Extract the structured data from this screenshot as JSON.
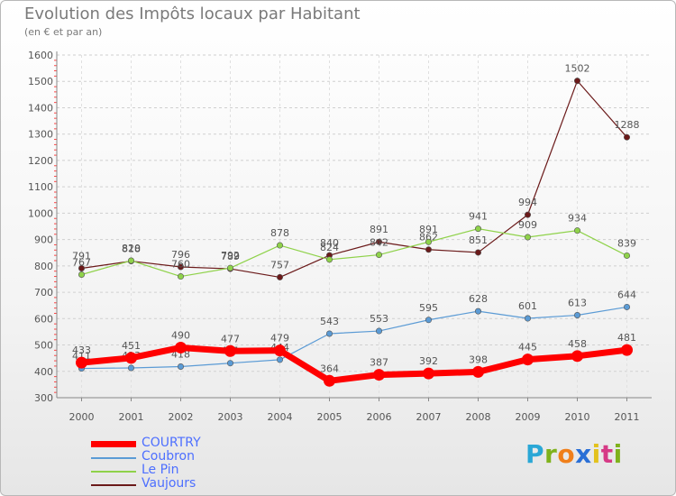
{
  "chart_data": {
    "type": "line",
    "title": "Evolution des Impôts locaux par Habitant",
    "subtitle": "(en € et par an)",
    "x": [
      "2000",
      "2001",
      "2002",
      "2003",
      "2004",
      "2005",
      "2006",
      "2007",
      "2008",
      "2009",
      "2010",
      "2011"
    ],
    "ylim": [
      300,
      1600
    ],
    "yticks": [
      "300",
      "400",
      "500",
      "600",
      "700",
      "800",
      "900",
      "1000",
      "1100",
      "1200",
      "1300",
      "1400",
      "1500",
      "1600"
    ],
    "grid": true,
    "legend_position": "bottom-left",
    "series": [
      {
        "name": "COURTRY",
        "color": "#ff0000",
        "values": [
          433,
          451,
          490,
          477,
          479,
          364,
          387,
          392,
          398,
          445,
          458,
          481
        ],
        "labels": [
          "433",
          "451",
          "490",
          "477",
          "479",
          "364",
          "387",
          "392",
          "398",
          "445",
          "458",
          "481"
        ]
      },
      {
        "name": "Coubron",
        "color": "#5b9bd5",
        "values": [
          411,
          413,
          418,
          431,
          444,
          543,
          553,
          595,
          628,
          601,
          613,
          644
        ],
        "labels": [
          "411",
          "413",
          "418",
          "431",
          "444",
          "543",
          "553",
          "595",
          "628",
          "601",
          "613",
          "644"
        ]
      },
      {
        "name": "Le Pin",
        "color": "#8fd24a",
        "values": [
          767,
          820,
          760,
          792,
          878,
          824,
          842,
          891,
          941,
          909,
          934,
          839
        ],
        "labels": [
          "767",
          "820",
          "760",
          "792",
          "878",
          "824",
          "842",
          "891",
          "941",
          "909",
          "934",
          "839"
        ]
      },
      {
        "name": "Vaujours",
        "color": "#6b1a1a",
        "values": [
          791,
          818,
          796,
          789,
          757,
          840,
          891,
          862,
          851,
          994,
          1502,
          1288
        ],
        "labels": [
          "791",
          "818",
          "796",
          "789",
          "757",
          "840",
          "891",
          "862",
          "851",
          "994",
          "1502",
          "1288"
        ]
      }
    ]
  },
  "brand": {
    "letters": [
      "P",
      "r",
      "o",
      "x",
      "i",
      "t",
      "i"
    ],
    "colors": [
      "#2aa7d6",
      "#7fb21c",
      "#f07f1a",
      "#2a6fd6",
      "#e3c21d",
      "#d63a86",
      "#7fb21c"
    ]
  }
}
